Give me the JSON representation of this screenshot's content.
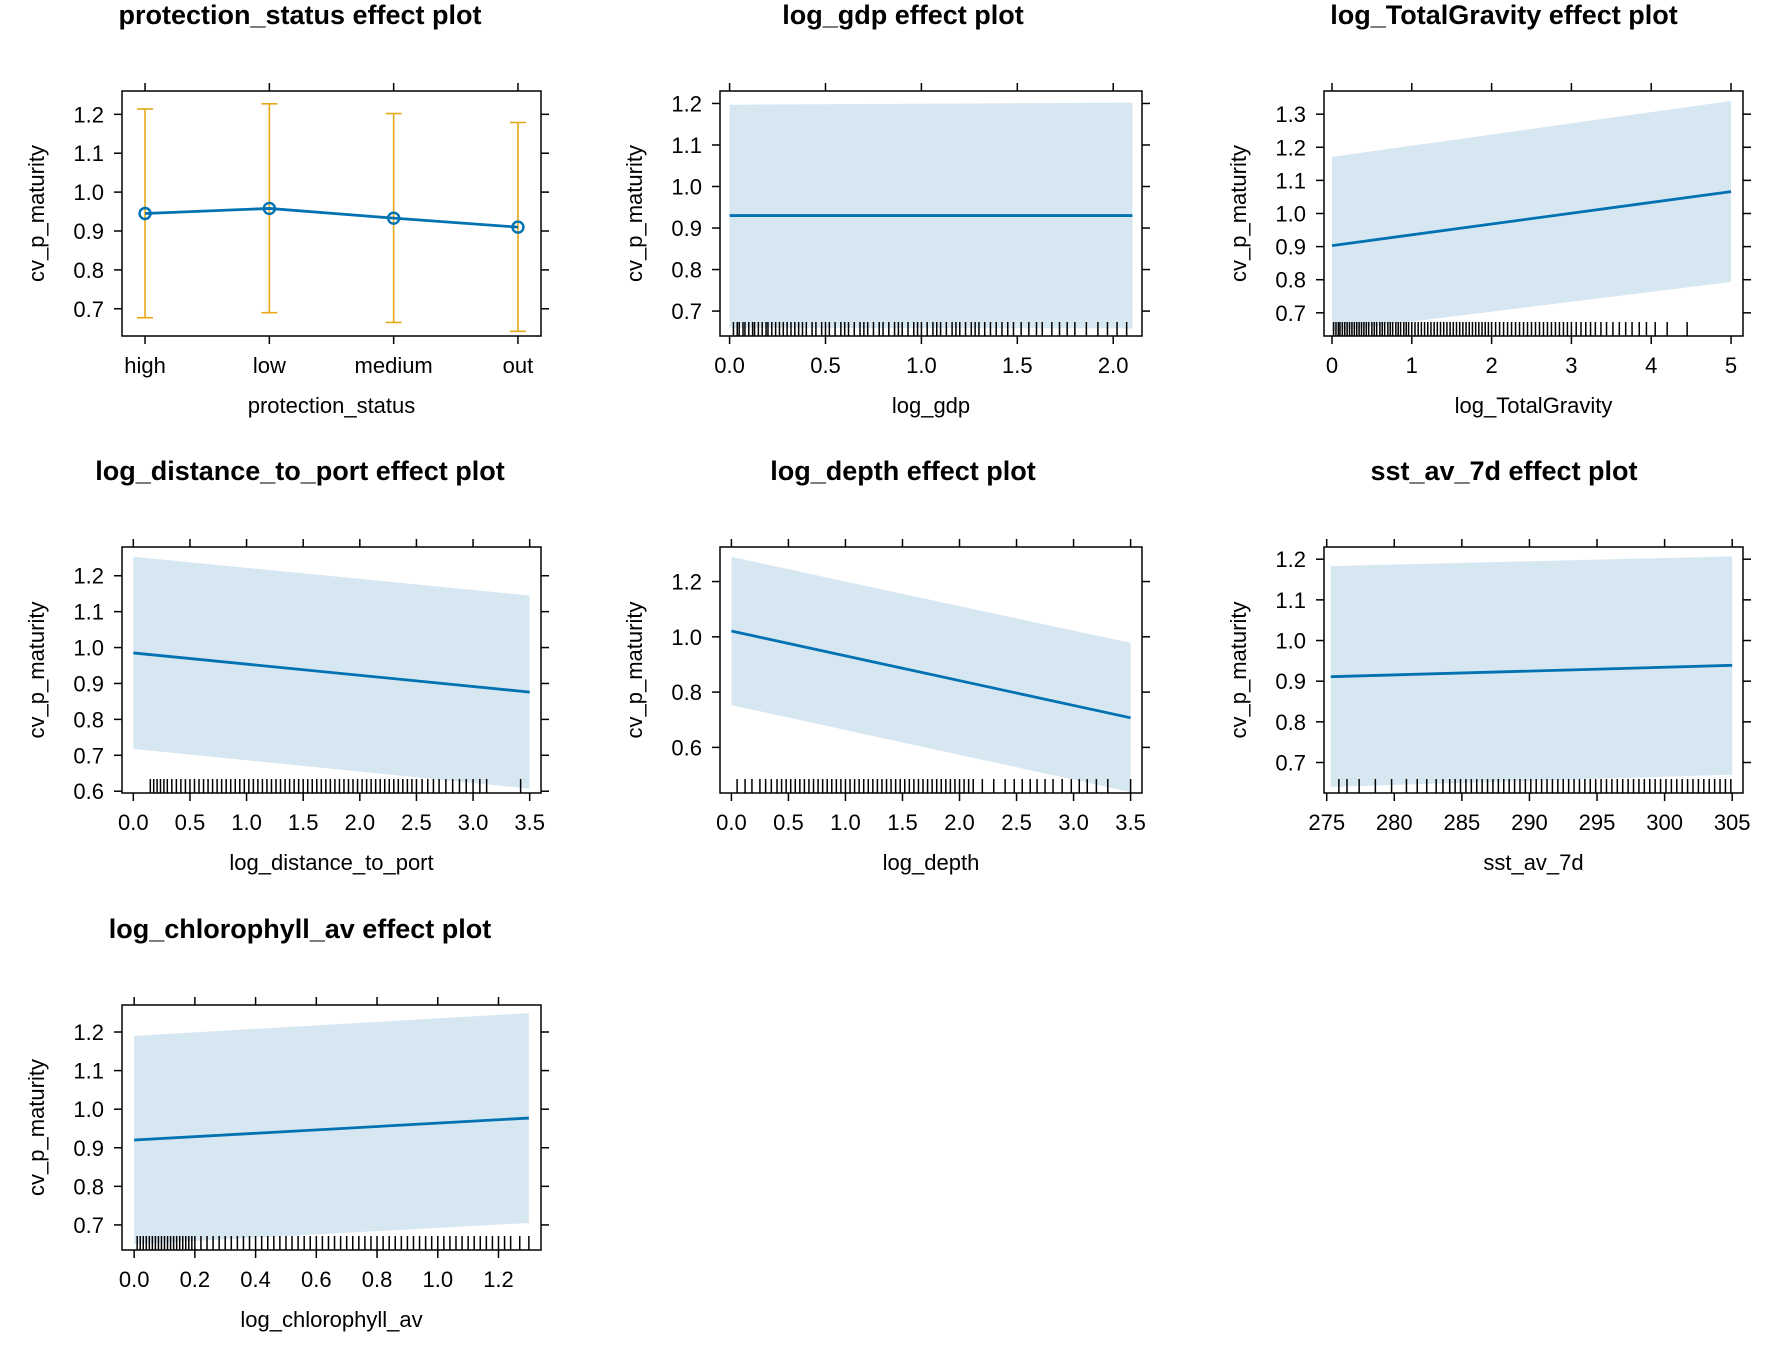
{
  "colors": {
    "line": "#0072b2",
    "band": "#d7e7f1",
    "errorbar": "#e6a817",
    "frame": "#000000",
    "background": "#ffffff"
  },
  "chart_data": [
    {
      "id": "protection_status",
      "type": "line",
      "title": "protection_status effect plot",
      "xlabel": "protection_status",
      "ylabel": "cv_p_maturity",
      "categories": [
        "high",
        "low",
        "medium",
        "out"
      ],
      "values": [
        0.945,
        0.958,
        0.933,
        0.91
      ],
      "lower": [
        0.677,
        0.69,
        0.665,
        0.642
      ],
      "upper": [
        1.214,
        1.227,
        1.202,
        1.179
      ],
      "ylim": [
        0.63,
        1.26
      ],
      "yticks": [
        0.7,
        0.8,
        0.9,
        1.0,
        1.1,
        1.2
      ],
      "yticklabels": [
        "0.7",
        "0.8",
        "0.9",
        "1.0",
        "1.1",
        "1.2"
      ],
      "grid": false,
      "legend": "none"
    },
    {
      "id": "log_gdp",
      "type": "line",
      "title": "log_gdp effect plot",
      "xlabel": "log_gdp",
      "ylabel": "cv_p_maturity",
      "x": [
        0.0,
        2.1
      ],
      "values": [
        0.93,
        0.93
      ],
      "lower": [
        0.66,
        0.658
      ],
      "upper": [
        1.197,
        1.202
      ],
      "xlim": [
        -0.05,
        2.15
      ],
      "ylim": [
        0.64,
        1.23
      ],
      "xticks": [
        0.0,
        0.5,
        1.0,
        1.5,
        2.0
      ],
      "xticklabels": [
        "0.0",
        "0.5",
        "1.0",
        "1.5",
        "2.0"
      ],
      "yticks": [
        0.7,
        0.8,
        0.9,
        1.0,
        1.1,
        1.2
      ],
      "yticklabels": [
        "0.7",
        "0.8",
        "0.9",
        "1.0",
        "1.1",
        "1.2"
      ],
      "rug": [
        0.02,
        0.04,
        0.05,
        0.07,
        0.08,
        0.1,
        0.12,
        0.13,
        0.15,
        0.17,
        0.19,
        0.2,
        0.22,
        0.24,
        0.26,
        0.28,
        0.3,
        0.32,
        0.34,
        0.36,
        0.38,
        0.4,
        0.43,
        0.45,
        0.48,
        0.5,
        0.52,
        0.55,
        0.58,
        0.6,
        0.62,
        0.65,
        0.68,
        0.7,
        0.72,
        0.75,
        0.78,
        0.8,
        0.83,
        0.86,
        0.88,
        0.9,
        0.93,
        0.96,
        0.98,
        1.0,
        1.03,
        1.06,
        1.08,
        1.1,
        1.13,
        1.16,
        1.18,
        1.2,
        1.23,
        1.26,
        1.28,
        1.3,
        1.33,
        1.36,
        1.39,
        1.42,
        1.45,
        1.48,
        1.52,
        1.56,
        1.6,
        1.63,
        1.68,
        1.72,
        1.76,
        1.8,
        1.86,
        1.92,
        1.97,
        2.02,
        2.07
      ],
      "grid": false,
      "legend": "none"
    },
    {
      "id": "log_TotalGravity",
      "type": "line",
      "title": "log_TotalGravity effect plot",
      "xlabel": "log_TotalGravity",
      "ylabel": "cv_p_maturity",
      "x": [
        0.0,
        5.0
      ],
      "values": [
        0.903,
        1.066
      ],
      "lower": [
        0.644,
        0.793
      ],
      "upper": [
        1.171,
        1.34
      ],
      "xlim": [
        -0.1,
        5.15
      ],
      "ylim": [
        0.63,
        1.37
      ],
      "xticks": [
        0,
        1,
        2,
        3,
        4,
        5
      ],
      "xticklabels": [
        "0",
        "1",
        "2",
        "3",
        "4",
        "5"
      ],
      "yticks": [
        0.7,
        0.8,
        0.9,
        1.0,
        1.1,
        1.2,
        1.3
      ],
      "yticklabels": [
        "0.7",
        "0.8",
        "0.9",
        "1.0",
        "1.1",
        "1.2",
        "1.3"
      ],
      "rug": [
        0.02,
        0.05,
        0.08,
        0.1,
        0.13,
        0.16,
        0.19,
        0.22,
        0.25,
        0.28,
        0.31,
        0.34,
        0.37,
        0.4,
        0.43,
        0.46,
        0.5,
        0.53,
        0.56,
        0.6,
        0.63,
        0.66,
        0.7,
        0.73,
        0.76,
        0.8,
        0.83,
        0.86,
        0.9,
        0.93,
        0.96,
        1.0,
        1.04,
        1.08,
        1.12,
        1.16,
        1.2,
        1.24,
        1.28,
        1.32,
        1.36,
        1.4,
        1.44,
        1.48,
        1.52,
        1.56,
        1.6,
        1.64,
        1.68,
        1.72,
        1.76,
        1.8,
        1.84,
        1.88,
        1.92,
        1.96,
        2.0,
        2.05,
        2.1,
        2.15,
        2.2,
        2.25,
        2.3,
        2.35,
        2.4,
        2.45,
        2.5,
        2.55,
        2.6,
        2.65,
        2.7,
        2.75,
        2.8,
        2.85,
        2.9,
        2.95,
        3.0,
        3.06,
        3.12,
        3.18,
        3.24,
        3.3,
        3.37,
        3.44,
        3.52,
        3.6,
        3.68,
        3.76,
        3.85,
        3.94,
        4.05,
        4.2,
        4.45
      ],
      "grid": false,
      "legend": "none"
    },
    {
      "id": "log_distance_to_port",
      "type": "line",
      "title": "log_distance_to_port effect plot",
      "xlabel": "log_distance_to_port",
      "ylabel": "cv_p_maturity",
      "x": [
        0.0,
        3.5
      ],
      "values": [
        0.985,
        0.876
      ],
      "lower": [
        0.718,
        0.607
      ],
      "upper": [
        1.253,
        1.145
      ],
      "xlim": [
        -0.1,
        3.6
      ],
      "ylim": [
        0.595,
        1.28
      ],
      "xticks": [
        0.0,
        0.5,
        1.0,
        1.5,
        2.0,
        2.5,
        3.0,
        3.5
      ],
      "xticklabels": [
        "0.0",
        "0.5",
        "1.0",
        "1.5",
        "2.0",
        "2.5",
        "3.0",
        "3.5"
      ],
      "yticks": [
        0.6,
        0.7,
        0.8,
        0.9,
        1.0,
        1.1,
        1.2
      ],
      "yticklabels": [
        "0.6",
        "0.7",
        "0.8",
        "0.9",
        "1.0",
        "1.1",
        "1.2"
      ],
      "rug": [
        0.15,
        0.18,
        0.21,
        0.24,
        0.27,
        0.3,
        0.34,
        0.38,
        0.42,
        0.46,
        0.5,
        0.54,
        0.58,
        0.62,
        0.66,
        0.7,
        0.74,
        0.78,
        0.82,
        0.86,
        0.9,
        0.94,
        0.98,
        1.02,
        1.06,
        1.1,
        1.14,
        1.18,
        1.22,
        1.26,
        1.3,
        1.34,
        1.38,
        1.42,
        1.46,
        1.5,
        1.54,
        1.58,
        1.62,
        1.66,
        1.7,
        1.74,
        1.78,
        1.82,
        1.86,
        1.9,
        1.94,
        1.98,
        2.02,
        2.06,
        2.1,
        2.14,
        2.18,
        2.22,
        2.26,
        2.3,
        2.34,
        2.38,
        2.42,
        2.46,
        2.5,
        2.55,
        2.6,
        2.65,
        2.7,
        2.76,
        2.82,
        2.88,
        2.94,
        3.0,
        3.06,
        3.12,
        3.42
      ],
      "grid": false,
      "legend": "none"
    },
    {
      "id": "log_depth",
      "type": "line",
      "title": "log_depth effect plot",
      "xlabel": "log_depth",
      "ylabel": "cv_p_maturity",
      "x": [
        0.0,
        3.5
      ],
      "values": [
        1.021,
        0.707
      ],
      "lower": [
        0.753,
        0.438
      ],
      "upper": [
        1.289,
        0.978
      ],
      "xlim": [
        -0.1,
        3.6
      ],
      "ylim": [
        0.435,
        1.325
      ],
      "xticks": [
        0.0,
        0.5,
        1.0,
        1.5,
        2.0,
        2.5,
        3.0,
        3.5
      ],
      "xticklabels": [
        "0.0",
        "0.5",
        "1.0",
        "1.5",
        "2.0",
        "2.5",
        "3.0",
        "3.5"
      ],
      "yticks": [
        0.6,
        0.8,
        1.0,
        1.2
      ],
      "yticklabels": [
        "0.6",
        "0.8",
        "1.0",
        "1.2"
      ],
      "rug": [
        0.05,
        0.12,
        0.18,
        0.25,
        0.3,
        0.35,
        0.4,
        0.44,
        0.48,
        0.52,
        0.56,
        0.6,
        0.64,
        0.68,
        0.72,
        0.76,
        0.8,
        0.84,
        0.88,
        0.92,
        0.96,
        1.0,
        1.04,
        1.08,
        1.12,
        1.16,
        1.2,
        1.24,
        1.28,
        1.32,
        1.36,
        1.4,
        1.44,
        1.48,
        1.52,
        1.56,
        1.6,
        1.64,
        1.68,
        1.72,
        1.76,
        1.8,
        1.84,
        1.88,
        1.92,
        1.96,
        2.0,
        2.04,
        2.08,
        2.12,
        2.2,
        2.3,
        2.4,
        2.48,
        2.55,
        2.62,
        2.68,
        2.75,
        2.82,
        2.9,
        2.98,
        3.05,
        3.12,
        3.2,
        3.3,
        3.5
      ],
      "grid": false,
      "legend": "none"
    },
    {
      "id": "sst_av_7d",
      "type": "line",
      "title": "sst_av_7d effect plot",
      "xlabel": "sst_av_7d",
      "ylabel": "cv_p_maturity",
      "x": [
        275.3,
        305.0
      ],
      "values": [
        0.911,
        0.939
      ],
      "lower": [
        0.64,
        0.67
      ],
      "upper": [
        1.183,
        1.207
      ],
      "xlim": [
        274.8,
        305.8
      ],
      "ylim": [
        0.625,
        1.23
      ],
      "xticks": [
        275,
        280,
        285,
        290,
        295,
        300,
        305
      ],
      "xticklabels": [
        "275",
        "280",
        "285",
        "290",
        "295",
        "300",
        "305"
      ],
      "yticks": [
        0.7,
        0.8,
        0.9,
        1.0,
        1.1,
        1.2
      ],
      "yticklabels": [
        "0.7",
        "0.8",
        "0.9",
        "1.0",
        "1.1",
        "1.2"
      ],
      "rug": [
        275.9,
        276.5,
        277.4,
        278.6,
        279.8,
        280.9,
        281.7,
        282.4,
        283.1,
        283.6,
        284.1,
        284.5,
        284.9,
        285.3,
        285.7,
        286.1,
        286.5,
        286.9,
        287.3,
        287.7,
        288.1,
        288.5,
        288.9,
        289.3,
        289.7,
        290.1,
        290.5,
        290.9,
        291.3,
        291.7,
        292.1,
        292.5,
        292.9,
        293.3,
        293.7,
        294.1,
        294.5,
        294.9,
        295.3,
        295.7,
        296.1,
        296.5,
        296.9,
        297.3,
        297.7,
        298.1,
        298.5,
        298.9,
        299.3,
        299.7,
        300.1,
        300.5,
        300.9,
        301.3,
        301.7,
        302.1,
        302.5,
        302.9,
        303.3,
        303.7,
        304.1,
        304.5,
        304.9
      ],
      "grid": false,
      "legend": "none"
    },
    {
      "id": "log_chlorophyll_av",
      "type": "line",
      "title": "log_chlorophyll_av effect plot",
      "xlabel": "log_chlorophyll_av",
      "ylabel": "cv_p_maturity",
      "x": [
        0.0,
        1.3
      ],
      "values": [
        0.92,
        0.977
      ],
      "lower": [
        0.65,
        0.705
      ],
      "upper": [
        1.19,
        1.249
      ],
      "xlim": [
        -0.04,
        1.34
      ],
      "ylim": [
        0.635,
        1.27
      ],
      "xticks": [
        0.0,
        0.2,
        0.4,
        0.6,
        0.8,
        1.0,
        1.2
      ],
      "xticklabels": [
        "0.0",
        "0.2",
        "0.4",
        "0.6",
        "0.8",
        "1.0",
        "1.2"
      ],
      "yticks": [
        0.7,
        0.8,
        0.9,
        1.0,
        1.1,
        1.2
      ],
      "yticklabels": [
        "0.7",
        "0.8",
        "0.9",
        "1.0",
        "1.1",
        "1.2"
      ],
      "rug": [
        0.01,
        0.02,
        0.03,
        0.04,
        0.05,
        0.06,
        0.07,
        0.08,
        0.09,
        0.1,
        0.11,
        0.12,
        0.13,
        0.14,
        0.15,
        0.16,
        0.17,
        0.18,
        0.19,
        0.2,
        0.22,
        0.24,
        0.26,
        0.28,
        0.3,
        0.32,
        0.34,
        0.36,
        0.38,
        0.4,
        0.42,
        0.44,
        0.46,
        0.48,
        0.5,
        0.52,
        0.54,
        0.56,
        0.58,
        0.6,
        0.62,
        0.64,
        0.66,
        0.68,
        0.7,
        0.72,
        0.74,
        0.76,
        0.78,
        0.8,
        0.82,
        0.84,
        0.86,
        0.88,
        0.9,
        0.92,
        0.94,
        0.96,
        0.98,
        1.0,
        1.02,
        1.04,
        1.06,
        1.08,
        1.1,
        1.12,
        1.14,
        1.16,
        1.18,
        1.2,
        1.22,
        1.24,
        1.27,
        1.3
      ],
      "grid": false,
      "legend": "none"
    }
  ]
}
